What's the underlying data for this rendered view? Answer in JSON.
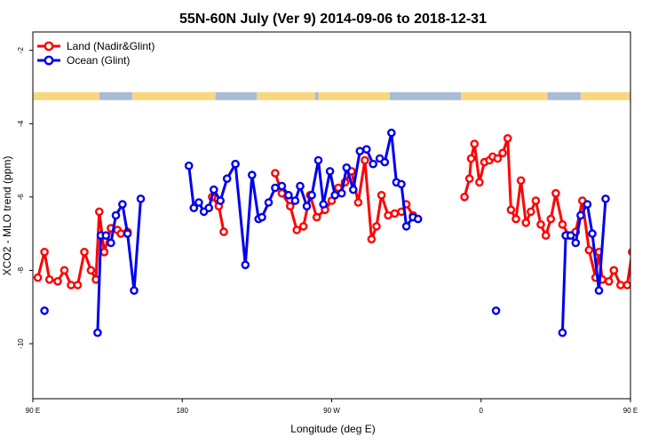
{
  "chart_data": {
    "type": "line",
    "title": "55N-60N July (Ver 9)   2014-09-06 to 2018-12-31",
    "xlabel": "Longitude (deg E)",
    "ylabel": "XCO2 - MLO trend (ppm)",
    "xlim": [
      90,
      450
    ],
    "ylim": [
      -11.5,
      -1.5
    ],
    "x_ticks": [
      {
        "value": 90,
        "label": "90 E"
      },
      {
        "value": 180,
        "label": "180"
      },
      {
        "value": 270,
        "label": "90 W"
      },
      {
        "value": 360,
        "label": "0"
      },
      {
        "value": 450,
        "label": "90 E"
      }
    ],
    "y_ticks": [
      {
        "value": -2,
        "label": "-2"
      },
      {
        "value": -4,
        "label": "-4"
      },
      {
        "value": -6,
        "label": "-6"
      },
      {
        "value": -8,
        "label": "-8"
      },
      {
        "value": -10,
        "label": "-10"
      }
    ],
    "legend_position": "top-left",
    "grid": false,
    "land_ocean_strip": {
      "y_center": -3.25,
      "segments": [
        {
          "x0": 90,
          "x1": 130,
          "kind": "land"
        },
        {
          "x0": 130,
          "x1": 150,
          "kind": "ocean"
        },
        {
          "x0": 150,
          "x1": 200,
          "kind": "land"
        },
        {
          "x0": 200,
          "x1": 225,
          "kind": "ocean"
        },
        {
          "x0": 225,
          "x1": 260,
          "kind": "land"
        },
        {
          "x0": 260,
          "x1": 262,
          "kind": "ocean"
        },
        {
          "x0": 262,
          "x1": 305,
          "kind": "land"
        },
        {
          "x0": 305,
          "x1": 348,
          "kind": "ocean"
        },
        {
          "x0": 348,
          "x1": 400,
          "kind": "land"
        },
        {
          "x0": 400,
          "x1": 420,
          "kind": "ocean"
        },
        {
          "x0": 420,
          "x1": 450,
          "kind": "land"
        }
      ]
    },
    "series": [
      {
        "name": "Land (Nadir&Glint)",
        "color": "#ff0000",
        "segments": [
          {
            "x": [
              93,
              97,
              100,
              105,
              109,
              113,
              117,
              121,
              125,
              128,
              130,
              133,
              137,
              141,
              143,
              147
            ],
            "y": [
              -8.2,
              -7.5,
              -8.25,
              -8.3,
              -8.0,
              -8.4,
              -8.4,
              -7.5,
              -8.0,
              -8.25,
              -6.4,
              -7.5,
              -6.85,
              -6.9,
              -7.0,
              -6.95
            ]
          },
          {
            "x": [
              198,
              202,
              205
            ],
            "y": [
              -6.0,
              -6.25,
              -6.95
            ]
          },
          {
            "x": [
              236,
              240,
              245,
              249,
              253,
              257,
              261,
              266,
              270,
              274,
              278,
              282,
              286,
              290,
              294,
              297,
              300,
              304,
              308,
              312,
              315,
              319
            ],
            "y": [
              -5.35,
              -5.9,
              -6.25,
              -6.9,
              -6.8,
              -5.95,
              -6.55,
              -6.35,
              -6.1,
              -5.75,
              -5.6,
              -5.3,
              -6.15,
              -5.0,
              -7.15,
              -6.8,
              -5.95,
              -6.5,
              -6.45,
              -6.4,
              -6.2,
              -6.5
            ]
          },
          {
            "x": [
              350,
              353,
              354,
              356,
              359,
              362,
              365,
              367,
              370,
              373,
              376,
              378,
              381,
              384,
              387,
              390,
              393,
              396,
              399,
              402,
              405,
              409,
              413,
              417,
              421,
              425,
              429,
              431,
              433,
              437,
              440
            ],
            "y": [
              -6.0,
              -5.5,
              -4.95,
              -4.55,
              -5.6,
              -5.05,
              -5.0,
              -4.9,
              -4.95,
              -4.8,
              -4.4,
              -6.35,
              -6.6,
              -5.55,
              -6.7,
              -6.4,
              -6.1,
              -6.75,
              -7.05,
              -6.6,
              -5.9,
              -6.75,
              -7.05,
              -6.95,
              -6.1,
              -7.45,
              -8.2,
              -7.5,
              -8.25,
              -8.3,
              -8.0
            ]
          },
          {
            "x": [
              440,
              444,
              448,
              451,
              453,
              455,
              459,
              461
            ],
            "y": [
              -8.0,
              -8.4,
              -8.4,
              -7.5,
              -8.0,
              -8.25,
              -6.4,
              -7.5
            ]
          }
        ]
      },
      {
        "name": "Ocean (Glint)",
        "color": "#0000ee",
        "segments": [
          {
            "x": [
              97
            ],
            "y": [
              -9.1
            ]
          },
          {
            "x": [
              129,
              131,
              134,
              137,
              140,
              144,
              147,
              151,
              155
            ],
            "y": [
              -9.7,
              -7.05,
              -7.05,
              -7.25,
              -6.5,
              -6.2,
              -7.0,
              -8.55,
              -6.05
            ]
          },
          {
            "x": [
              184,
              187,
              190,
              193,
              196,
              199,
              203,
              207,
              212,
              218,
              222,
              226
            ],
            "y": [
              -5.15,
              -6.3,
              -6.15,
              -6.4,
              -6.3,
              -5.8,
              -6.1,
              -5.5,
              -5.1,
              -7.85,
              -5.4,
              -6.6
            ]
          },
          {
            "x": [
              228,
              232,
              236,
              240,
              244,
              248,
              251,
              255,
              258,
              262,
              265,
              269,
              272,
              276,
              279,
              283,
              287,
              291,
              295
            ],
            "y": [
              -6.55,
              -6.15,
              -5.75,
              -5.7,
              -5.95,
              -6.1,
              -5.7,
              -6.25,
              -5.95,
              -5.0,
              -6.2,
              -5.3,
              -5.95,
              -5.9,
              -5.2,
              -5.8,
              -4.75,
              -4.7,
              -5.1
            ]
          },
          {
            "x": [
              299,
              302,
              306,
              309,
              312,
              315,
              319,
              322
            ],
            "y": [
              -4.95,
              -5.05,
              -4.25,
              -5.6,
              -5.65,
              -6.8,
              -6.55,
              -6.6
            ]
          },
          {
            "x": [
              369
            ],
            "y": [
              -9.1
            ]
          },
          {
            "x": [
              409,
              411,
              414,
              417,
              420,
              424,
              427,
              431,
              435
            ],
            "y": [
              -9.7,
              -7.05,
              -7.05,
              -7.25,
              -6.5,
              -6.2,
              -7.0,
              -8.55,
              -6.05
            ]
          }
        ]
      }
    ]
  }
}
